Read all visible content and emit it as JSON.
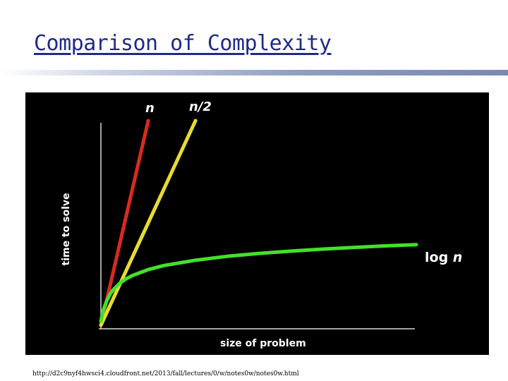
{
  "slide": {
    "title": "Comparison of Complexity",
    "source_url": "http://d2c9nyf4hwsci4.cloudfront.net/2013/fall/lectures/0/w/notes0w/notes0w.html"
  },
  "colors": {
    "panel_background": "#000000",
    "axis": "#d8d8d8",
    "text": "#ffffff",
    "title": "#1f2a8a"
  },
  "chart_data": {
    "type": "line",
    "xlabel": "size of problem",
    "ylabel": "time to solve",
    "xlim": [
      0,
      100
    ],
    "ylim": [
      0,
      100
    ],
    "grid": false,
    "legend": "none",
    "series": [
      {
        "name": "n",
        "label_parts": [
          "n"
        ],
        "color": "#d92b1f",
        "x": [
          0,
          15
        ],
        "y": [
          0,
          100
        ]
      },
      {
        "name": "n/2",
        "label_parts": [
          "n/2"
        ],
        "color": "#e8dc2e",
        "x": [
          0,
          30
        ],
        "y": [
          0,
          100
        ]
      },
      {
        "name": "log n",
        "label_parts": [
          "log ",
          "n"
        ],
        "color": "#44e02a",
        "x": [
          0,
          0.5,
          1,
          2,
          3,
          4,
          6,
          8,
          10,
          15,
          20,
          30,
          40,
          50,
          60,
          70,
          80,
          90,
          100
        ],
        "y": [
          2,
          5.7,
          8.5,
          12.5,
          15.4,
          17.5,
          20.6,
          22.7,
          24.3,
          27.2,
          29.2,
          31.8,
          33.7,
          35.1,
          36.2,
          37.2,
          38.0,
          38.8,
          39.4
        ]
      }
    ]
  }
}
